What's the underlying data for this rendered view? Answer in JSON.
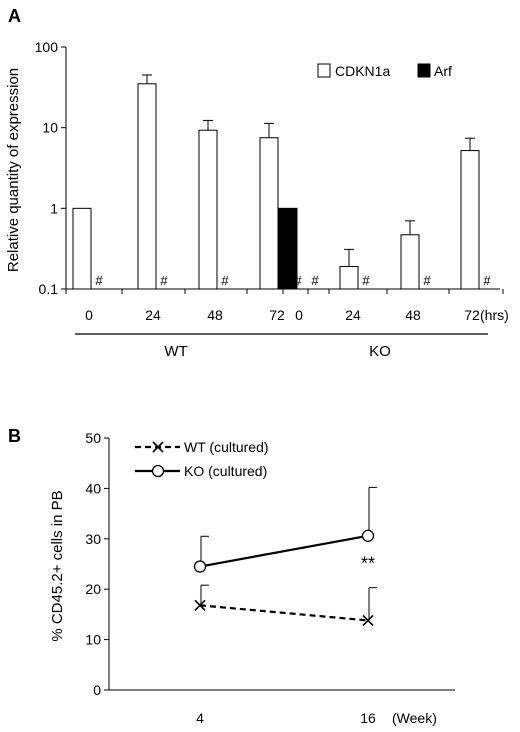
{
  "chart_data": [
    {
      "panel": "A",
      "type": "bar",
      "ylabel": "Relative quantity of expression",
      "yscale": "log",
      "ylim": [
        0.1,
        100
      ],
      "yticks": [
        "0.1",
        "1",
        "10",
        "100"
      ],
      "xunit": "(hrs)",
      "groups": [
        {
          "name": "WT",
          "categories": [
            "0",
            "24",
            "48",
            "72"
          ]
        },
        {
          "name": "KO",
          "categories": [
            "0",
            "24",
            "48",
            "72"
          ]
        }
      ],
      "not_detected_marker": "#",
      "legend": {
        "position": "top-right",
        "entries": [
          "CDKN1a",
          "Arf"
        ]
      },
      "series": [
        {
          "name": "CDKN1a",
          "fill": "#ffffff",
          "values": [
            1,
            35,
            9.3,
            7.5,
            null,
            0.19,
            0.47,
            5.2
          ],
          "errors": [
            null,
            10,
            3,
            3.8,
            null,
            0.12,
            0.23,
            2.2
          ]
        },
        {
          "name": "Arf",
          "fill": "#000000",
          "values": [
            null,
            null,
            null,
            1,
            null,
            null,
            null,
            null
          ],
          "errors": [
            null,
            null,
            null,
            null,
            null,
            null,
            null,
            null
          ]
        }
      ]
    },
    {
      "panel": "B",
      "type": "line",
      "ylabel": "% CD45.2+ cells in PB",
      "ylim": [
        0,
        50
      ],
      "yticks": [
        "0",
        "10",
        "20",
        "30",
        "40",
        "50"
      ],
      "x": [
        "4",
        "16"
      ],
      "xunit": "(Week)",
      "legend": {
        "position": "top-left"
      },
      "series": [
        {
          "name": "WT (cultured)",
          "style": "dashed",
          "marker": "x",
          "values": [
            16.8,
            13.8
          ],
          "errors": [
            4,
            6.5
          ]
        },
        {
          "name": "KO (cultured)",
          "style": "solid",
          "marker": "open-circle",
          "values": [
            24.5,
            30.6
          ],
          "errors": [
            6,
            9.6
          ]
        }
      ],
      "annotation": {
        "text": "**",
        "at_x": "16"
      }
    }
  ]
}
